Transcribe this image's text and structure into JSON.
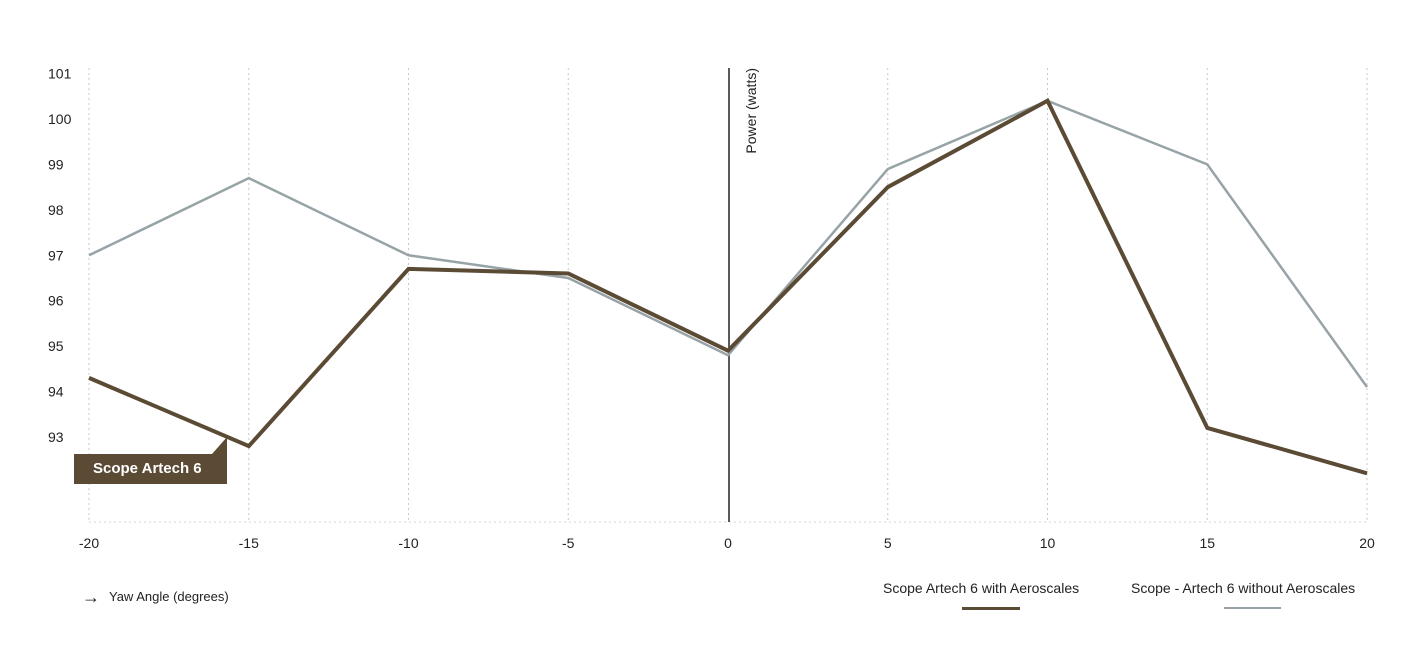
{
  "chart_data": {
    "type": "line",
    "ylabel": "Power (watts)",
    "xlabel": "Yaw Angle (degrees)",
    "x": [
      -20,
      -15,
      -10,
      -5,
      0,
      5,
      10,
      15,
      20
    ],
    "x_tick_labels": [
      "-20",
      "-15",
      "-10",
      "-5",
      "0",
      "5",
      "10",
      "15",
      "20"
    ],
    "y_tick_labels": [
      "93",
      "94",
      "95",
      "96",
      "97",
      "98",
      "99",
      "100",
      "101"
    ],
    "xlim": [
      -20,
      20
    ],
    "grid": "vertical dotted",
    "legend_position": "bottom-right",
    "callout": "Scope Artech 6",
    "series": [
      {
        "name": "Scope Artech 6 with Aeroscales",
        "color": "#5b4b35",
        "values": [
          94.3,
          92.8,
          96.7,
          96.6,
          94.9,
          98.5,
          100.4,
          93.2,
          92.2
        ]
      },
      {
        "name": "Scope - Artech 6 without Aeroscales",
        "color": "#97a3a6",
        "values": [
          97.0,
          98.7,
          97.0,
          96.5,
          94.8,
          98.9,
          100.4,
          99.0,
          94.1
        ]
      }
    ]
  }
}
